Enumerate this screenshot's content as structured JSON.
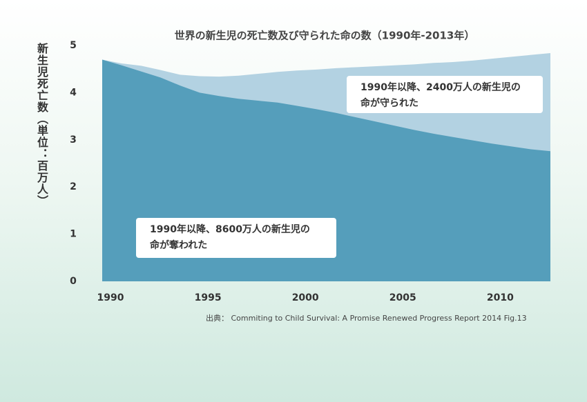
{
  "chart_data": {
    "type": "area",
    "title": "世界の新生児の死亡数及び守られた命の数（1990年-2013年）",
    "y_label": "新生児死亡数（単位：百万人）",
    "source": "出典： Commiting to Child Survival: A Promise Renewed Progress Report 2014 Fig.13",
    "x": [
      1990,
      1991,
      1992,
      1993,
      1994,
      1995,
      1996,
      1997,
      1998,
      1999,
      2000,
      2001,
      2002,
      2003,
      2004,
      2005,
      2006,
      2007,
      2008,
      2009,
      2010,
      2011,
      2012,
      2013
    ],
    "series": [
      {
        "color": "#559ebb",
        "values": [
          4.7,
          4.58,
          4.45,
          4.32,
          4.15,
          4.0,
          3.93,
          3.87,
          3.83,
          3.79,
          3.72,
          3.65,
          3.57,
          3.48,
          3.39,
          3.3,
          3.21,
          3.13,
          3.06,
          2.99,
          2.92,
          2.86,
          2.8,
          2.76
        ]
      },
      {
        "color": "#b3d2e2",
        "values": [
          4.7,
          4.62,
          4.57,
          4.48,
          4.38,
          4.35,
          4.34,
          4.36,
          4.4,
          4.44,
          4.47,
          4.49,
          4.52,
          4.54,
          4.56,
          4.58,
          4.6,
          4.63,
          4.65,
          4.68,
          4.72,
          4.76,
          4.8,
          4.84
        ]
      }
    ],
    "xlim": [
      1990,
      2013
    ],
    "xticks": [
      1990,
      1995,
      2000,
      2005,
      2010
    ],
    "ylim": [
      0,
      5
    ],
    "yticks": [
      0,
      1,
      2,
      3,
      4,
      5
    ],
    "annotations": [
      {
        "lines": [
          "1990年以降、8600万人の新生児の",
          "命が奪われた"
        ],
        "color": "#333333"
      },
      {
        "lines": [
          "1990年以降、2400万人の新生児の",
          "命が守られた"
        ],
        "color": "#e8641c"
      }
    ]
  }
}
